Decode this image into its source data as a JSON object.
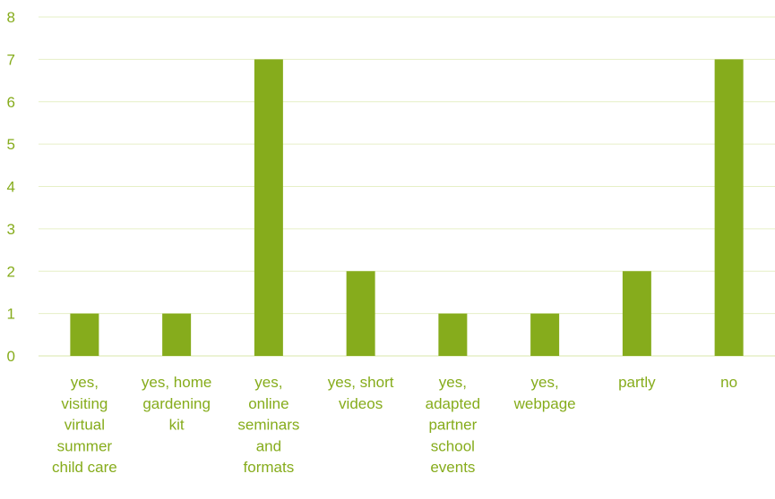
{
  "chart_data": {
    "type": "bar",
    "categories": [
      [
        "yes,",
        "visiting",
        "virtual",
        "summer",
        "child care"
      ],
      [
        "yes, home",
        "gardening",
        "kit"
      ],
      [
        "yes,",
        "online",
        "seminars",
        "and",
        "formats"
      ],
      [
        "yes, short",
        "videos"
      ],
      [
        "yes,",
        "adapted",
        "partner",
        "school",
        "events"
      ],
      [
        "yes,",
        "webpage"
      ],
      [
        "partly"
      ],
      [
        "no"
      ]
    ],
    "values": [
      1,
      1,
      7,
      2,
      1,
      1,
      2,
      7
    ],
    "title": "",
    "xlabel": "",
    "ylabel": "",
    "ylim": [
      0,
      8
    ],
    "yticks": [
      "0",
      "1",
      "2",
      "3",
      "4",
      "5",
      "6",
      "7",
      "8"
    ],
    "grid": true,
    "legend": "none",
    "colors": {
      "bar": "#86ac1c",
      "text": "#86ac1c",
      "grid": "#e6efc6",
      "axis": "#e6efc6"
    }
  }
}
